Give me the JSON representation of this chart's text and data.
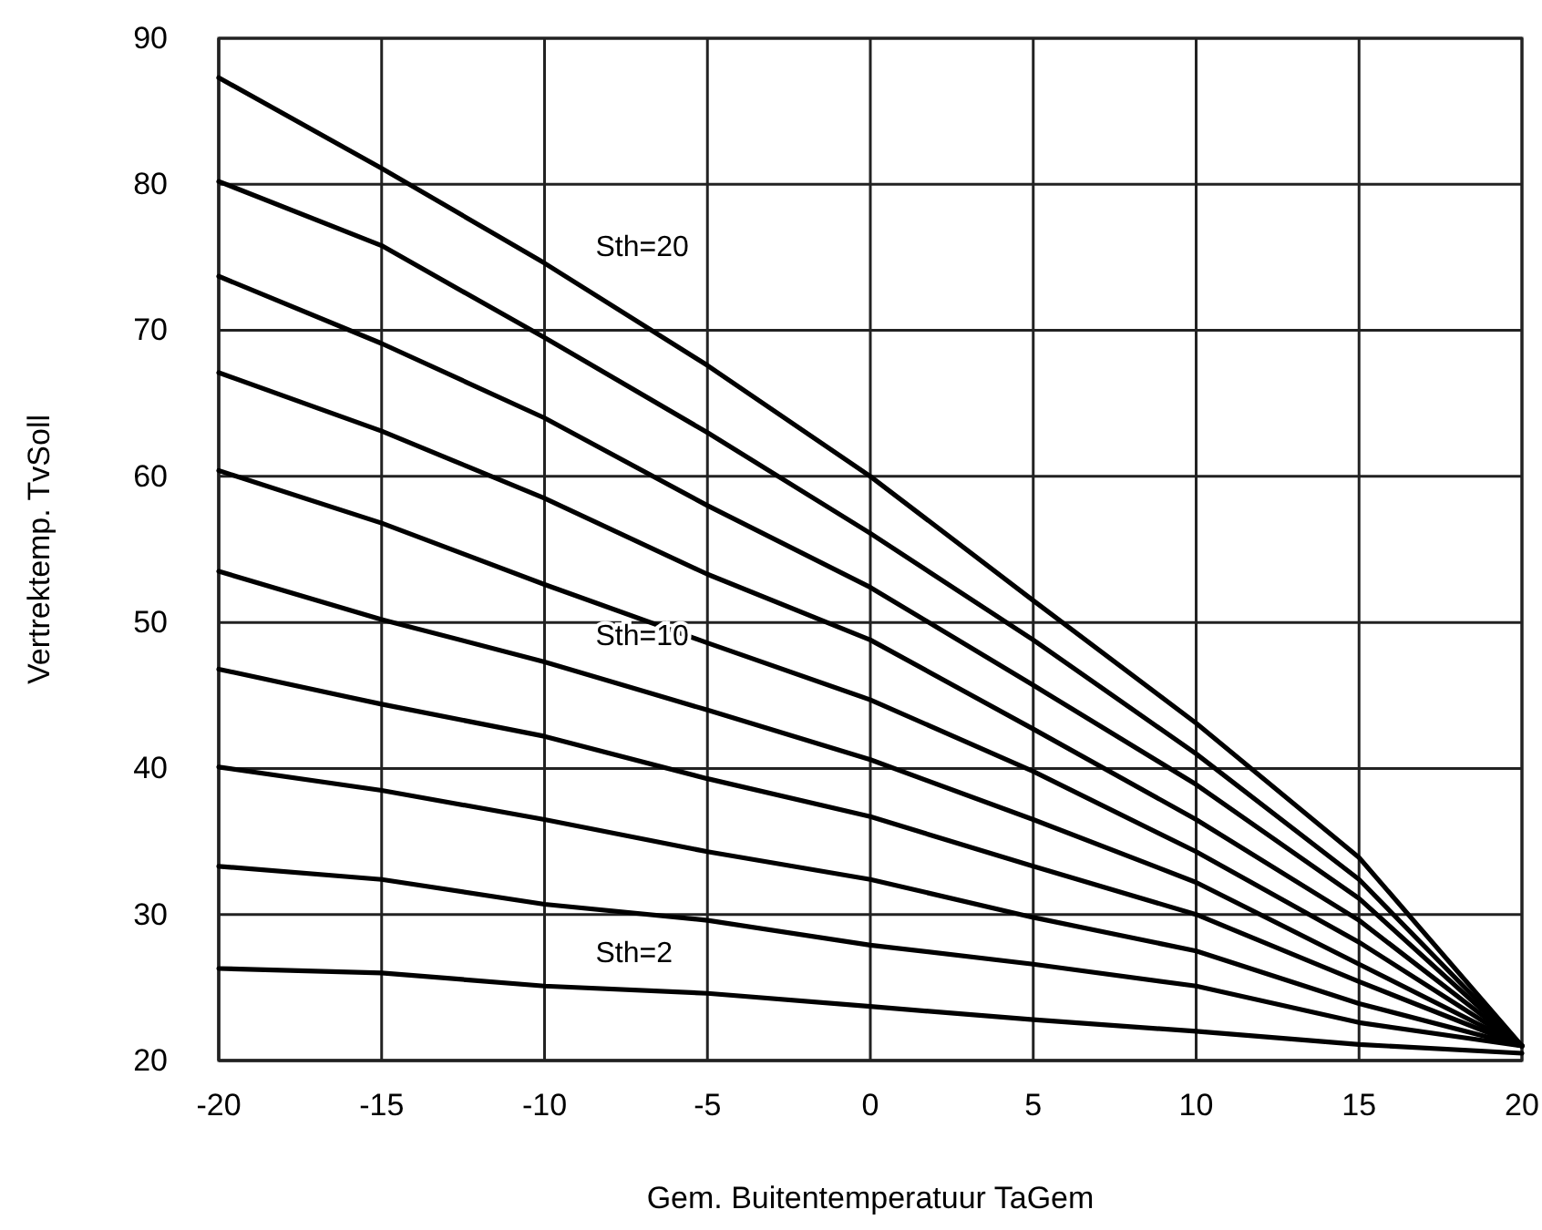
{
  "chart_data": {
    "type": "line",
    "xlabel": "Gem. Buitentemperatuur TaGem",
    "ylabel": "Vertrektemp. TvSoll",
    "x": [
      -20,
      -15,
      -10,
      -5,
      0,
      5,
      10,
      15,
      20
    ],
    "series": [
      {
        "name": "Sth=20",
        "color": "#000000",
        "values": [
          87.3,
          81.1,
          74.6,
          67.6,
          60,
          51.5,
          43.1,
          33.9,
          21
        ]
      },
      {
        "color": "#000000",
        "values": [
          80.2,
          75.8,
          69.5,
          63.0,
          56.1,
          48.8,
          41.0,
          32.4,
          21
        ]
      },
      {
        "color": "#000000",
        "values": [
          73.7,
          69.1,
          64.0,
          58.0,
          52.4,
          45.7,
          38.9,
          31.1,
          21
        ]
      },
      {
        "color": "#000000",
        "values": [
          67.1,
          63.1,
          58.5,
          53.3,
          48.8,
          42.7,
          36.5,
          29.6,
          21
        ]
      },
      {
        "color": "#000000",
        "values": [
          60.4,
          56.8,
          52.6,
          48.6,
          44.7,
          39.8,
          34.3,
          28.1,
          21
        ]
      },
      {
        "name": "Sth=10",
        "color": "#000000",
        "values": [
          53.5,
          50.2,
          47.3,
          44.0,
          40.6,
          36.5,
          32.2,
          26.6,
          21
        ]
      },
      {
        "color": "#000000",
        "values": [
          46.8,
          44.4,
          42.2,
          39.3,
          36.7,
          33.3,
          30.0,
          25.4,
          21
        ]
      },
      {
        "color": "#000000",
        "values": [
          40.1,
          38.5,
          36.5,
          34.3,
          32.4,
          29.8,
          27.5,
          23.9,
          21
        ]
      },
      {
        "color": "#000000",
        "values": [
          33.3,
          32.4,
          30.7,
          29.6,
          27.9,
          26.6,
          25.1,
          22.6,
          21
        ]
      },
      {
        "name": "Sth=2",
        "color": "#000000",
        "values": [
          26.3,
          26.0,
          25.1,
          24.6,
          23.7,
          22.8,
          22.0,
          21.1,
          20.5
        ]
      }
    ],
    "xlim": [
      -20,
      20
    ],
    "xticks": [
      -20,
      -15,
      -10,
      -5,
      0,
      5,
      10,
      15,
      20
    ],
    "ylim": [
      20,
      90
    ],
    "yticks": [
      20,
      30,
      40,
      50,
      60,
      70,
      80,
      90
    ],
    "grid": true
  }
}
